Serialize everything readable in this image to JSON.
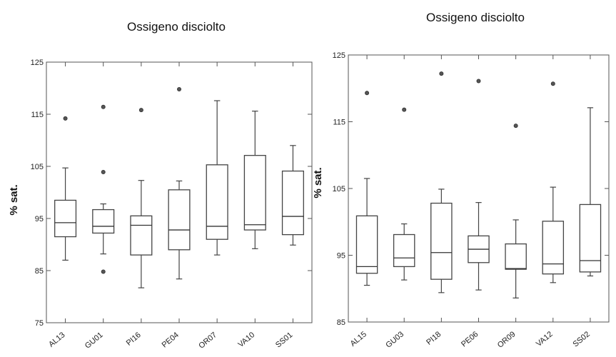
{
  "chart_data": [
    {
      "type": "box",
      "title": "Ossigeno disciolto",
      "ylabel": "% sat.",
      "ylim": [
        75,
        125
      ],
      "yticks": [
        75,
        85,
        95,
        105,
        115,
        125
      ],
      "categories": [
        "AL13",
        "GU01",
        "PI16",
        "PE04",
        "OR07",
        "VA10",
        "SS01"
      ],
      "boxes": [
        {
          "whisker_low": 87,
          "q1": 91.5,
          "median": 94.2,
          "q3": 98.5,
          "whisker_high": 104.7,
          "outliers": [
            114.2
          ]
        },
        {
          "whisker_low": 88.2,
          "q1": 92.2,
          "median": 93.5,
          "q3": 96.7,
          "whisker_high": 97.8,
          "outliers": [
            116.4,
            103.9,
            84.8
          ]
        },
        {
          "whisker_low": 81.7,
          "q1": 88,
          "median": 93.7,
          "q3": 95.5,
          "whisker_high": 102.3,
          "outliers": [
            115.8
          ]
        },
        {
          "whisker_low": 83.4,
          "q1": 89,
          "median": 92.8,
          "q3": 100.5,
          "whisker_high": 102.2,
          "outliers": [
            119.8
          ]
        },
        {
          "whisker_low": 88,
          "q1": 91,
          "median": 93.5,
          "q3": 105.3,
          "whisker_high": 117.6,
          "outliers": []
        },
        {
          "whisker_low": 89.2,
          "q1": 92.8,
          "median": 93.8,
          "q3": 107.1,
          "whisker_high": 115.6,
          "outliers": []
        },
        {
          "whisker_low": 89.9,
          "q1": 91.9,
          "median": 95.4,
          "q3": 104.1,
          "whisker_high": 109,
          "outliers": []
        }
      ]
    },
    {
      "type": "box",
      "title": "Ossigeno disciolto",
      "ylabel": "% sat.",
      "ylim": [
        85,
        125
      ],
      "yticks": [
        85,
        95,
        105,
        115,
        125
      ],
      "categories": [
        "AL15",
        "GU03",
        "PI18",
        "PE06",
        "OR09",
        "VA12",
        "SS02"
      ],
      "boxes": [
        {
          "whisker_low": 90.5,
          "q1": 92.3,
          "median": 93.3,
          "q3": 100.9,
          "whisker_high": 106.5,
          "outliers": [
            119.3
          ]
        },
        {
          "whisker_low": 91.3,
          "q1": 93.3,
          "median": 94.6,
          "q3": 98.1,
          "whisker_high": 99.7,
          "outliers": [
            116.8
          ]
        },
        {
          "whisker_low": 89.4,
          "q1": 91.4,
          "median": 95.4,
          "q3": 102.8,
          "whisker_high": 104.9,
          "outliers": [
            122.2
          ]
        },
        {
          "whisker_low": 89.8,
          "q1": 93.9,
          "median": 95.9,
          "q3": 97.9,
          "whisker_high": 102.9,
          "outliers": [
            121.1
          ]
        },
        {
          "whisker_low": 88.6,
          "q1": 92.9,
          "median": 93,
          "q3": 96.7,
          "whisker_high": 100.3,
          "outliers": [
            114.4
          ]
        },
        {
          "whisker_low": 90.9,
          "q1": 92.2,
          "median": 93.7,
          "q3": 100.1,
          "whisker_high": 105.2,
          "outliers": [
            120.7
          ]
        },
        {
          "whisker_low": 91.9,
          "q1": 92.5,
          "median": 94.2,
          "q3": 102.6,
          "whisker_high": 117.1,
          "outliers": []
        }
      ]
    }
  ]
}
